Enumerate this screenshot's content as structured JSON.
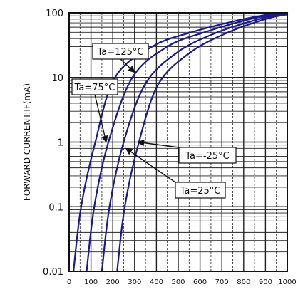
{
  "chart_data": {
    "type": "line",
    "title": "",
    "xlabel": "",
    "ylabel": "FORWARD CURRENT:IF(mA)",
    "xlim": [
      0,
      1000
    ],
    "ylim": [
      0.01,
      100
    ],
    "y_scale": "log",
    "grid": true,
    "x_ticks": [
      "0",
      "100",
      "200",
      "300",
      "400",
      "500",
      "600",
      "700",
      "800",
      "900",
      "1000"
    ],
    "y_ticks": [
      "0.01",
      "0.1",
      "1",
      "10",
      "100"
    ],
    "colors": {
      "curve": "#1a1a8c",
      "grid": "#222222",
      "frame": "#111111"
    },
    "series": [
      {
        "points": [
          [
            20,
            0.01
          ],
          [
            55,
            0.1
          ],
          [
            120,
            1
          ],
          [
            210,
            10
          ],
          [
            380,
            30
          ],
          [
            560,
            50
          ],
          [
            800,
            80
          ],
          [
            960,
            100
          ]
        ]
      },
      {
        "points": [
          [
            80,
            0.01
          ],
          [
            115,
            0.1
          ],
          [
            180,
            1
          ],
          [
            290,
            10
          ],
          [
            450,
            30
          ],
          [
            620,
            50
          ],
          [
            830,
            80
          ],
          [
            990,
            100
          ]
        ]
      },
      {
        "points": [
          [
            150,
            0.01
          ],
          [
            185,
            0.1
          ],
          [
            250,
            1
          ],
          [
            350,
            8
          ],
          [
            500,
            25
          ],
          [
            680,
            50
          ],
          [
            870,
            80
          ],
          [
            1000,
            100
          ]
        ]
      },
      {
        "points": [
          [
            220,
            0.01
          ],
          [
            255,
            0.1
          ],
          [
            320,
            1
          ],
          [
            410,
            8
          ],
          [
            560,
            25
          ],
          [
            730,
            50
          ],
          [
            900,
            80
          ],
          [
            1000,
            95
          ]
        ]
      }
    ],
    "annotations": [
      {
        "text": "Ta=125°C",
        "point": [
          300,
          12
        ]
      },
      {
        "text": "Ta=75°C",
        "point": [
          170,
          1
        ]
      },
      {
        "text": "Ta=-25°C",
        "point": [
          315,
          1
        ]
      },
      {
        "text": "Ta=25°C",
        "point": [
          260,
          0.8
        ]
      }
    ]
  }
}
